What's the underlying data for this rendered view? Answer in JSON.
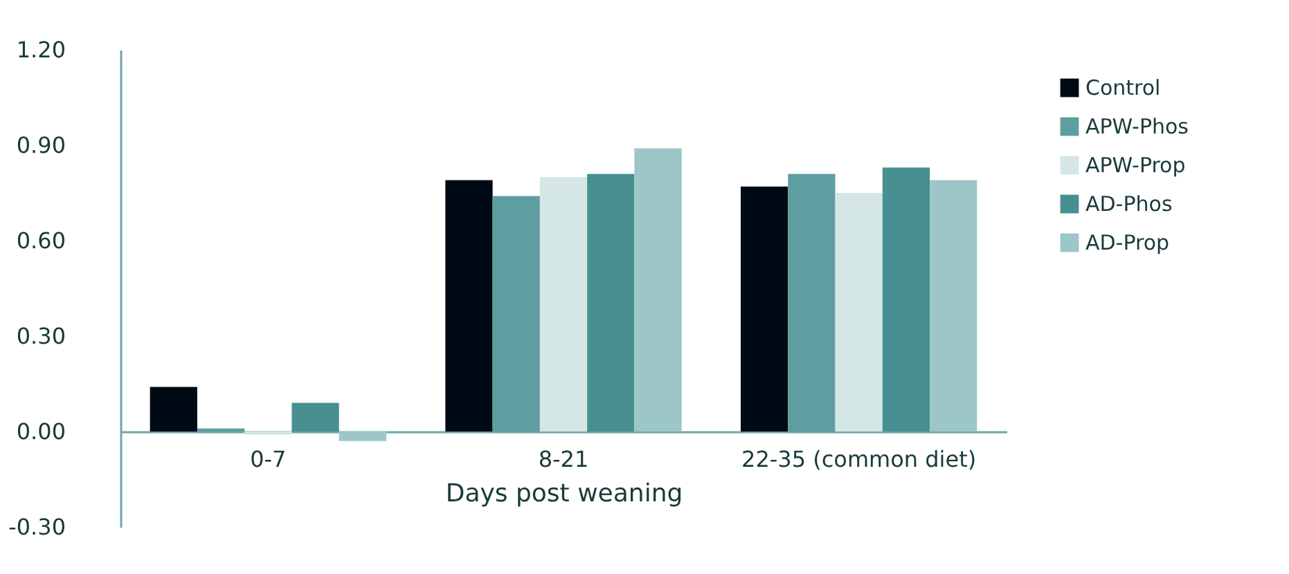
{
  "chart_data": {
    "type": "bar",
    "xlabel": "Days post weaning",
    "categories": [
      "0-7",
      "8-21",
      "22-35 (common diet)"
    ],
    "series": [
      {
        "name": "Control",
        "color": "#000a14",
        "values": [
          0.14,
          0.79,
          0.77
        ]
      },
      {
        "name": "APW-Phos",
        "color": "#5f9ea0",
        "values": [
          0.01,
          0.74,
          0.81
        ]
      },
      {
        "name": "APW-Prop",
        "color": "#d4e6e6",
        "values": [
          -0.01,
          0.8,
          0.75
        ]
      },
      {
        "name": "AD-Phos",
        "color": "#478f91",
        "values": [
          0.09,
          0.81,
          0.83
        ]
      },
      {
        "name": "AD-Prop",
        "color": "#9cc6c7",
        "values": [
          -0.03,
          0.89,
          0.79
        ]
      }
    ],
    "ylim": [
      -0.3,
      1.2
    ],
    "yticks": [
      {
        "value": -0.3,
        "label": "-0.30"
      },
      {
        "value": 0,
        "label": "0.00"
      },
      {
        "value": 0.3,
        "label": "0.30"
      },
      {
        "value": 0.6,
        "label": "0.60"
      },
      {
        "value": 0.9,
        "label": "0.90"
      },
      {
        "value": 1.2,
        "label": "1.20"
      }
    ],
    "grid": false,
    "legend": "right"
  }
}
